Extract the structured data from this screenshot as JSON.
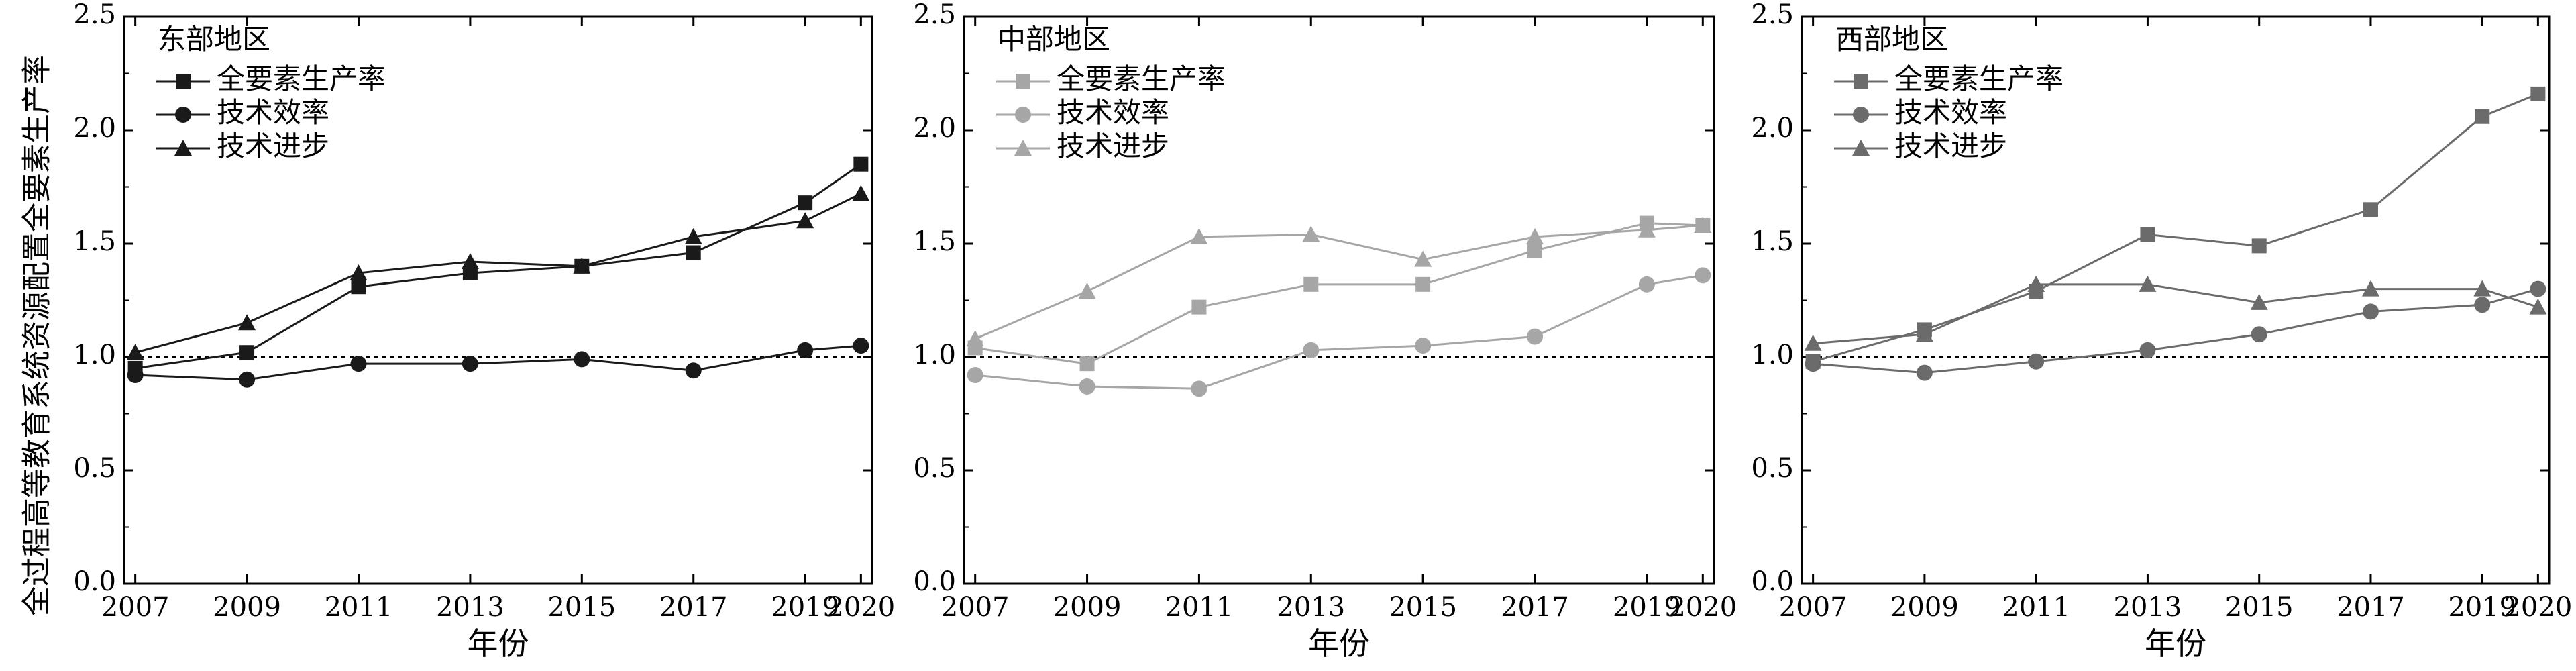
{
  "figure": {
    "ylabel": "全过程高等教育系统资源配置全要素生产率",
    "xlabel": "年份"
  },
  "chart_data": [
    {
      "type": "line",
      "title": "东部地区",
      "xlabel": "年份",
      "ylabel": "全过程高等教育系统资源配置全要素生产率",
      "x": [
        2007,
        2009,
        2011,
        2013,
        2015,
        2017,
        2019,
        2020
      ],
      "xticks": [
        "2007",
        "2009",
        "2011",
        "2013",
        "2015",
        "2017",
        "2019",
        "2020"
      ],
      "xlim": [
        2006.8,
        2020.2
      ],
      "ylim": [
        0.0,
        2.5
      ],
      "yticks": [
        "0.0",
        "0.5",
        "1.0",
        "1.5",
        "2.0",
        "2.5"
      ],
      "reference_line": 1.0,
      "color": "#1a1a1a",
      "legend_position": "top-left",
      "series": [
        {
          "name": "全要素生产率",
          "marker": "square",
          "values": [
            0.95,
            1.02,
            1.31,
            1.37,
            1.4,
            1.46,
            1.68,
            1.85
          ]
        },
        {
          "name": "技术效率",
          "marker": "circle",
          "values": [
            0.92,
            0.9,
            0.97,
            0.97,
            0.99,
            0.94,
            1.03,
            1.05
          ]
        },
        {
          "name": "技术进步",
          "marker": "triangle",
          "values": [
            1.02,
            1.15,
            1.37,
            1.42,
            1.4,
            1.53,
            1.6,
            1.72
          ]
        }
      ]
    },
    {
      "type": "line",
      "title": "中部地区",
      "xlabel": "年份",
      "x": [
        2007,
        2009,
        2011,
        2013,
        2015,
        2017,
        2019,
        2020
      ],
      "xticks": [
        "2007",
        "2009",
        "2011",
        "2013",
        "2015",
        "2017",
        "2019",
        "2020"
      ],
      "xlim": [
        2006.8,
        2020.2
      ],
      "ylim": [
        0.0,
        2.5
      ],
      "yticks": [
        "0.0",
        "0.5",
        "1.0",
        "1.5",
        "2.0",
        "2.5"
      ],
      "reference_line": 1.0,
      "color": "#a6a6a6",
      "legend_position": "top-left",
      "series": [
        {
          "name": "全要素生产率",
          "marker": "square",
          "values": [
            1.04,
            0.97,
            1.22,
            1.32,
            1.32,
            1.47,
            1.59,
            1.58
          ]
        },
        {
          "name": "技术效率",
          "marker": "circle",
          "values": [
            0.92,
            0.87,
            0.86,
            1.03,
            1.05,
            1.09,
            1.32,
            1.36
          ]
        },
        {
          "name": "技术进步",
          "marker": "triangle",
          "values": [
            1.08,
            1.29,
            1.53,
            1.54,
            1.43,
            1.53,
            1.56,
            1.58
          ]
        }
      ]
    },
    {
      "type": "line",
      "title": "西部地区",
      "xlabel": "年份",
      "x": [
        2007,
        2009,
        2011,
        2013,
        2015,
        2017,
        2019,
        2020
      ],
      "xticks": [
        "2007",
        "2009",
        "2011",
        "2013",
        "2015",
        "2017",
        "2019",
        "2020"
      ],
      "xlim": [
        2006.8,
        2020.2
      ],
      "ylim": [
        0.0,
        2.5
      ],
      "yticks": [
        "0.0",
        "0.5",
        "1.0",
        "1.5",
        "2.0",
        "2.5"
      ],
      "reference_line": 1.0,
      "color": "#6b6b6b",
      "legend_position": "top-left",
      "series": [
        {
          "name": "全要素生产率",
          "marker": "square",
          "values": [
            0.98,
            1.12,
            1.29,
            1.54,
            1.49,
            1.65,
            2.06,
            2.16
          ]
        },
        {
          "name": "技术效率",
          "marker": "circle",
          "values": [
            0.97,
            0.93,
            0.98,
            1.03,
            1.1,
            1.2,
            1.23,
            1.3
          ]
        },
        {
          "name": "技术进步",
          "marker": "triangle",
          "values": [
            1.06,
            1.1,
            1.32,
            1.32,
            1.24,
            1.3,
            1.3,
            1.22
          ]
        }
      ]
    }
  ]
}
